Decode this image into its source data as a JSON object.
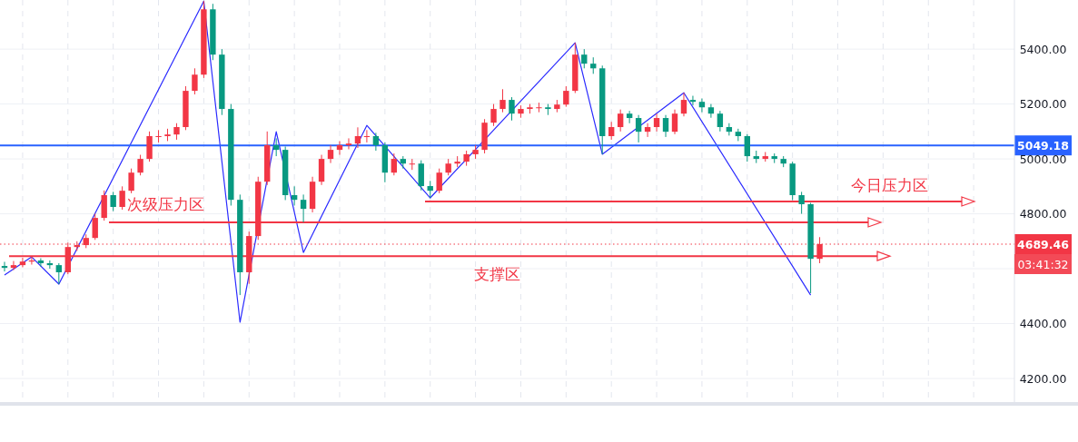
{
  "chart_data": {
    "type": "candlestick",
    "categories": [
      null,
      null,
      null,
      null,
      null,
      null,
      null,
      null,
      null,
      null,
      null,
      null,
      null,
      null,
      null,
      null,
      null,
      null,
      null,
      null,
      null,
      null,
      null,
      null,
      null,
      null,
      null,
      null,
      null,
      null,
      null,
      null,
      null,
      null,
      null,
      null,
      null,
      null,
      null,
      null,
      null,
      null,
      null,
      null,
      null,
      null,
      null,
      null,
      null,
      null,
      null,
      null,
      null,
      null,
      null,
      null,
      null,
      null,
      null,
      null,
      null,
      null,
      null,
      null,
      null,
      null,
      null,
      null,
      null,
      null,
      null,
      null,
      null,
      null,
      null,
      null,
      null,
      null,
      null,
      null,
      null,
      null,
      null,
      null,
      null,
      null,
      null,
      null,
      null,
      null,
      null,
      null,
      null,
      null,
      null,
      null,
      null,
      null,
      null,
      null,
      null,
      null,
      null,
      null,
      null,
      null,
      null,
      null,
      null,
      null,
      null,
      null
    ],
    "ohlc": [
      [
        4610,
        4625,
        4590,
        4603
      ],
      [
        4603,
        4628,
        4595,
        4613
      ],
      [
        4613,
        4640,
        4605,
        4626
      ],
      [
        4626,
        4645,
        4615,
        4630
      ],
      [
        4630,
        4638,
        4608,
        4620
      ],
      [
        4620,
        4630,
        4600,
        4613
      ],
      [
        4613,
        4620,
        4544,
        4587
      ],
      [
        4587,
        4695,
        4580,
        4679
      ],
      [
        4679,
        4700,
        4665,
        4686
      ],
      [
        4686,
        4725,
        4675,
        4712
      ],
      [
        4712,
        4800,
        4705,
        4785
      ],
      [
        4785,
        4885,
        4775,
        4868
      ],
      [
        4868,
        4880,
        4810,
        4825
      ],
      [
        4825,
        4900,
        4815,
        4884
      ],
      [
        4884,
        4965,
        4875,
        4950
      ],
      [
        4950,
        5015,
        4940,
        5000
      ],
      [
        5000,
        5100,
        4990,
        5083
      ],
      [
        5083,
        5105,
        5060,
        5083
      ],
      [
        5083,
        5110,
        5065,
        5089
      ],
      [
        5089,
        5130,
        5070,
        5116
      ],
      [
        5116,
        5265,
        5105,
        5248
      ],
      [
        5248,
        5330,
        5235,
        5307
      ],
      [
        5307,
        5575,
        5295,
        5545
      ],
      [
        5545,
        5565,
        5360,
        5380
      ],
      [
        5380,
        5400,
        5160,
        5182
      ],
      [
        5182,
        5200,
        4830,
        4851
      ],
      [
        4851,
        4870,
        4504,
        4587
      ],
      [
        4587,
        4735,
        4545,
        4719
      ],
      [
        4719,
        4935,
        4705,
        4917
      ],
      [
        4917,
        5100,
        4905,
        5050
      ],
      [
        5050,
        5075,
        5010,
        5033
      ],
      [
        5033,
        5045,
        4850,
        4868
      ],
      [
        4868,
        4900,
        4830,
        4851
      ],
      [
        4851,
        4870,
        4769,
        4818
      ],
      [
        4818,
        4935,
        4805,
        4917
      ],
      [
        4917,
        5015,
        4905,
        5000
      ],
      [
        5000,
        5050,
        4985,
        5033
      ],
      [
        5033,
        5065,
        5015,
        5050
      ],
      [
        5050,
        5075,
        5035,
        5056
      ],
      [
        5056,
        5115,
        5040,
        5083
      ],
      [
        5083,
        5105,
        5060,
        5083
      ],
      [
        5083,
        5095,
        5030,
        5050
      ],
      [
        5050,
        5060,
        4915,
        4950
      ],
      [
        4950,
        5020,
        4940,
        5000
      ],
      [
        5000,
        5010,
        4965,
        4983
      ],
      [
        4983,
        5000,
        4960,
        4983
      ],
      [
        4983,
        4995,
        4885,
        4901
      ],
      [
        4901,
        4920,
        4858,
        4884
      ],
      [
        4884,
        4965,
        4875,
        4950
      ],
      [
        4950,
        5000,
        4940,
        4983
      ],
      [
        4983,
        5010,
        4970,
        4990
      ],
      [
        4990,
        5030,
        4975,
        5017
      ],
      [
        5017,
        5050,
        5000,
        5033
      ],
      [
        5033,
        5145,
        5020,
        5132
      ],
      [
        5132,
        5200,
        5120,
        5182
      ],
      [
        5182,
        5254,
        5170,
        5215
      ],
      [
        5215,
        5225,
        5140,
        5165
      ],
      [
        5165,
        5195,
        5150,
        5182
      ],
      [
        5182,
        5200,
        5165,
        5188
      ],
      [
        5188,
        5205,
        5170,
        5188
      ],
      [
        5188,
        5200,
        5160,
        5182
      ],
      [
        5182,
        5215,
        5170,
        5198
      ],
      [
        5198,
        5265,
        5190,
        5248
      ],
      [
        5248,
        5423,
        5240,
        5380
      ],
      [
        5380,
        5400,
        5330,
        5347
      ],
      [
        5347,
        5370,
        5310,
        5330
      ],
      [
        5330,
        5340,
        5017,
        5083
      ],
      [
        5083,
        5135,
        5070,
        5116
      ],
      [
        5116,
        5180,
        5100,
        5165
      ],
      [
        5165,
        5175,
        5130,
        5149
      ],
      [
        5149,
        5160,
        5060,
        5099
      ],
      [
        5099,
        5130,
        5080,
        5116
      ],
      [
        5116,
        5165,
        5100,
        5149
      ],
      [
        5149,
        5160,
        5080,
        5099
      ],
      [
        5099,
        5180,
        5090,
        5165
      ],
      [
        5165,
        5241,
        5155,
        5215
      ],
      [
        5215,
        5230,
        5195,
        5208
      ],
      [
        5208,
        5220,
        5170,
        5188
      ],
      [
        5188,
        5200,
        5150,
        5165
      ],
      [
        5165,
        5175,
        5100,
        5116
      ],
      [
        5116,
        5130,
        5085,
        5099
      ],
      [
        5099,
        5110,
        5065,
        5083
      ],
      [
        5083,
        5090,
        4990,
        5010
      ],
      [
        5010,
        5030,
        4985,
        5000
      ],
      [
        5000,
        5025,
        4990,
        5010
      ],
      [
        5010,
        5020,
        4985,
        5000
      ],
      [
        5000,
        5010,
        4970,
        4983
      ],
      [
        4983,
        4990,
        4850,
        4868
      ],
      [
        4868,
        4880,
        4800,
        4835
      ],
      [
        4835,
        4840,
        4511,
        4636
      ],
      [
        4636,
        4715,
        4620,
        4689.46
      ],
      null,
      null,
      null,
      null,
      null,
      null,
      null,
      null,
      null,
      null,
      null,
      null,
      null,
      null,
      null,
      null,
      null,
      null,
      null,
      null,
      null
    ],
    "colors": [
      "#089981",
      "#f23645",
      "#f23645",
      "#f23645",
      "#089981",
      "#089981",
      "#089981",
      "#f23645",
      "#f23645",
      "#f23645",
      "#f23645",
      "#f23645",
      "#089981",
      "#f23645",
      "#f23645",
      "#f23645",
      "#f23645",
      "#f23645",
      "#f23645",
      "#f23645",
      "#f23645",
      "#f23645",
      "#f23645",
      "#089981",
      "#089981",
      "#089981",
      "#089981",
      "#f23645",
      "#f23645",
      "#f23645",
      "#089981",
      "#089981",
      "#089981",
      "#089981",
      "#f23645",
      "#f23645",
      "#f23645",
      "#f23645",
      "#f23645",
      "#f23645",
      "#f23645",
      "#089981",
      "#089981",
      "#f23645",
      "#089981",
      "#f23645",
      "#089981",
      "#089981",
      "#f23645",
      "#f23645",
      "#f23645",
      "#f23645",
      "#f23645",
      "#f23645",
      "#f23645",
      "#f23645",
      "#089981",
      "#f23645",
      "#f23645",
      "#f23645",
      "#089981",
      "#f23645",
      "#f23645",
      "#f23645",
      "#089981",
      "#089981",
      "#089981",
      "#f23645",
      "#f23645",
      "#089981",
      "#089981",
      "#f23645",
      "#f23645",
      "#089981",
      "#f23645",
      "#f23645",
      "#089981",
      "#089981",
      "#089981",
      "#089981",
      "#089981",
      "#089981",
      "#089981",
      "#089981",
      "#f23645",
      "#089981",
      "#089981",
      "#089981",
      "#089981",
      "#089981",
      "#f23645",
      null,
      null,
      null,
      null,
      null,
      null,
      null,
      null,
      null,
      null,
      null,
      null,
      null,
      null,
      null,
      null,
      null,
      null,
      null,
      null,
      null
    ],
    "series": [
      {
        "type": "line",
        "color": "#2a2aff",
        "values": [
          4577,
          null,
          null,
          4643,
          null,
          null,
          4544,
          null,
          null,
          null,
          null,
          null,
          null,
          null,
          null,
          null,
          null,
          null,
          null,
          null,
          null,
          null,
          5575,
          null,
          null,
          null,
          4405,
          null,
          null,
          null,
          5099,
          null,
          null,
          4659,
          null,
          null,
          null,
          null,
          null,
          null,
          5122,
          null,
          null,
          null,
          null,
          null,
          null,
          4858,
          null,
          null,
          null,
          null,
          null,
          null,
          null,
          null,
          null,
          null,
          null,
          null,
          null,
          null,
          null,
          5423,
          null,
          null,
          5017,
          null,
          null,
          null,
          null,
          null,
          null,
          null,
          null,
          5241,
          null,
          null,
          null,
          null,
          null,
          null,
          null,
          null,
          null,
          null,
          null,
          null,
          null,
          4504,
          null,
          null,
          null,
          null,
          null,
          null,
          null,
          null,
          null,
          null,
          null,
          null,
          null,
          null,
          null,
          null,
          null,
          null,
          null,
          null,
          null,
          null
        ]
      }
    ],
    "ylim": [
      4124,
      5579
    ],
    "yticks": [
      {
        "value": 4200,
        "label": "4200.00"
      },
      {
        "value": 4400,
        "label": "4400.00"
      },
      {
        "value": 4600,
        "label": null
      },
      {
        "value": 4800,
        "label": "4800.00"
      },
      {
        "value": 5000,
        "label": "5000.00"
      },
      {
        "value": 5200,
        "label": "5200.00"
      },
      {
        "value": 5400,
        "label": "5400.00"
      }
    ],
    "grid": true,
    "ref_lines": [
      {
        "axis": "y",
        "value": 5049.18,
        "label": "5049.18",
        "color": "#2962ff",
        "line_style": "solid"
      },
      {
        "axis": "y",
        "value": 4689.46,
        "label": "4689.46",
        "color": "#f23645",
        "line_style": "dotted"
      },
      {
        "axis": "y",
        "value": 4769,
        "label": "次级压力区",
        "color": "#f23645",
        "line_style": "solid"
      },
      {
        "axis": "y",
        "value": 4646,
        "label": "支撑区",
        "color": "#f23645",
        "line_style": "solid"
      },
      {
        "axis": "y",
        "value": 4845,
        "label": "今日压力区",
        "color": "#f23645",
        "line_style": "solid"
      }
    ],
    "annotations": [
      "03:41:32"
    ]
  }
}
